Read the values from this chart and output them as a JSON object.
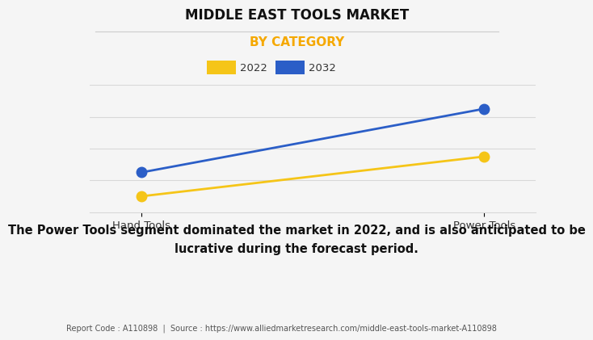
{
  "title": "MIDDLE EAST TOOLS MARKET",
  "subtitle": "BY CATEGORY",
  "categories": [
    "Hand Tools",
    "Power Tools"
  ],
  "series": [
    {
      "label": "2022",
      "values": [
        1,
        3.5
      ],
      "color": "#F5C518",
      "marker": "o",
      "linewidth": 2.0,
      "markersize": 9
    },
    {
      "label": "2032",
      "values": [
        2.5,
        6.5
      ],
      "color": "#2B5EC7",
      "marker": "o",
      "linewidth": 2.0,
      "markersize": 9
    }
  ],
  "ylim": [
    0,
    8
  ],
  "xlim": [
    -0.15,
    1.15
  ],
  "background_color": "#f5f5f5",
  "plot_bg_color": "#f5f5f5",
  "grid_color": "#d8d8d8",
  "title_fontsize": 12,
  "subtitle_fontsize": 11,
  "subtitle_color": "#F5A800",
  "legend_fontsize": 9.5,
  "tick_fontsize": 9.5,
  "annotation_text": "The Power Tools segment dominated the market in 2022, and is also anticipated to be\nlucrative during the forecast period.",
  "annotation_fontsize": 10.5,
  "footer_text": "Report Code : A110898  |  Source : https://www.alliedmarketresearch.com/middle-east-tools-market-A110898",
  "footer_fontsize": 7
}
